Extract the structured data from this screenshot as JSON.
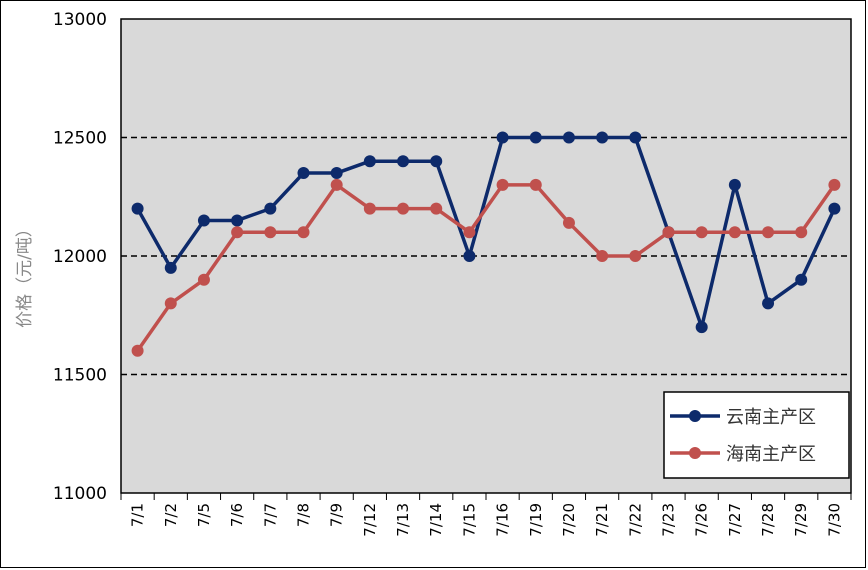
{
  "chart_data": {
    "type": "line",
    "title": "",
    "xlabel": "",
    "ylabel": "价格（元/吨）",
    "ylim": [
      11000,
      13000
    ],
    "yticks": [
      11000,
      11500,
      12000,
      12500,
      13000
    ],
    "grid": "horizontal dashed",
    "legend_position": "bottom-right",
    "categories": [
      "7/1",
      "7/2",
      "7/5",
      "7/6",
      "7/7",
      "7/8",
      "7/9",
      "7/12",
      "7/13",
      "7/14",
      "7/15",
      "7/16",
      "7/19",
      "7/20",
      "7/21",
      "7/22",
      "7/23",
      "7/26",
      "7/27",
      "7/28",
      "7/29",
      "7/30"
    ],
    "series": [
      {
        "name": "云南主产区",
        "color": "#0d2a6b",
        "values": [
          12200,
          11950,
          12150,
          12150,
          12200,
          12350,
          12350,
          12400,
          12400,
          12400,
          12000,
          12500,
          12500,
          12500,
          12500,
          12500,
          12100,
          11700,
          12300,
          11800,
          11900,
          12200
        ]
      },
      {
        "name": "海南主产区",
        "color": "#c0504d",
        "values": [
          11600,
          11800,
          11900,
          12100,
          12100,
          12100,
          12300,
          12200,
          12200,
          12200,
          12100,
          12300,
          12300,
          12140,
          12000,
          12000,
          12100,
          12100,
          12100,
          12100,
          12100,
          12300
        ]
      }
    ]
  }
}
